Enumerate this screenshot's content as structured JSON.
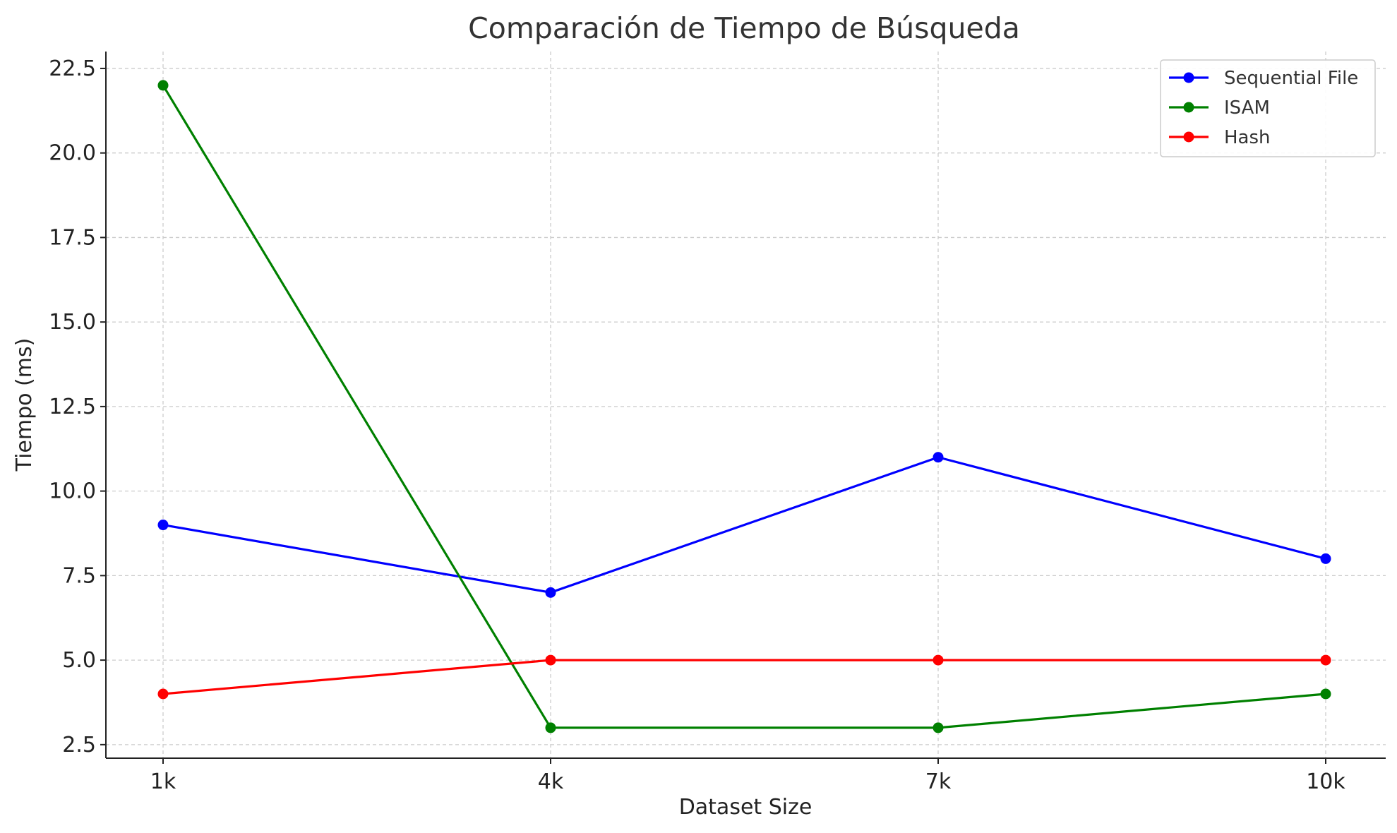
{
  "chart_data": {
    "type": "line",
    "title": "Comparación de Tiempo de Búsqueda",
    "xlabel": "Dataset Size",
    "ylabel": "Tiempo (ms)",
    "categories": [
      "1k",
      "4k",
      "7k",
      "10k"
    ],
    "ylim": [
      2.1,
      23.0
    ],
    "yticks": [
      2.5,
      5.0,
      7.5,
      10.0,
      12.5,
      15.0,
      17.5,
      20.0,
      22.5
    ],
    "ytick_labels": [
      "2.5",
      "5.0",
      "7.5",
      "10.0",
      "12.5",
      "15.0",
      "17.5",
      "20.0",
      "22.5"
    ],
    "grid": true,
    "legend_position": "top-right",
    "series": [
      {
        "name": "Sequential File",
        "color": "#0000ff",
        "values": [
          9,
          7,
          11,
          8
        ]
      },
      {
        "name": "ISAM",
        "color": "#008000",
        "values": [
          22,
          3,
          3,
          4
        ]
      },
      {
        "name": "Hash",
        "color": "#ff0000",
        "values": [
          4,
          5,
          5,
          5
        ]
      }
    ]
  }
}
